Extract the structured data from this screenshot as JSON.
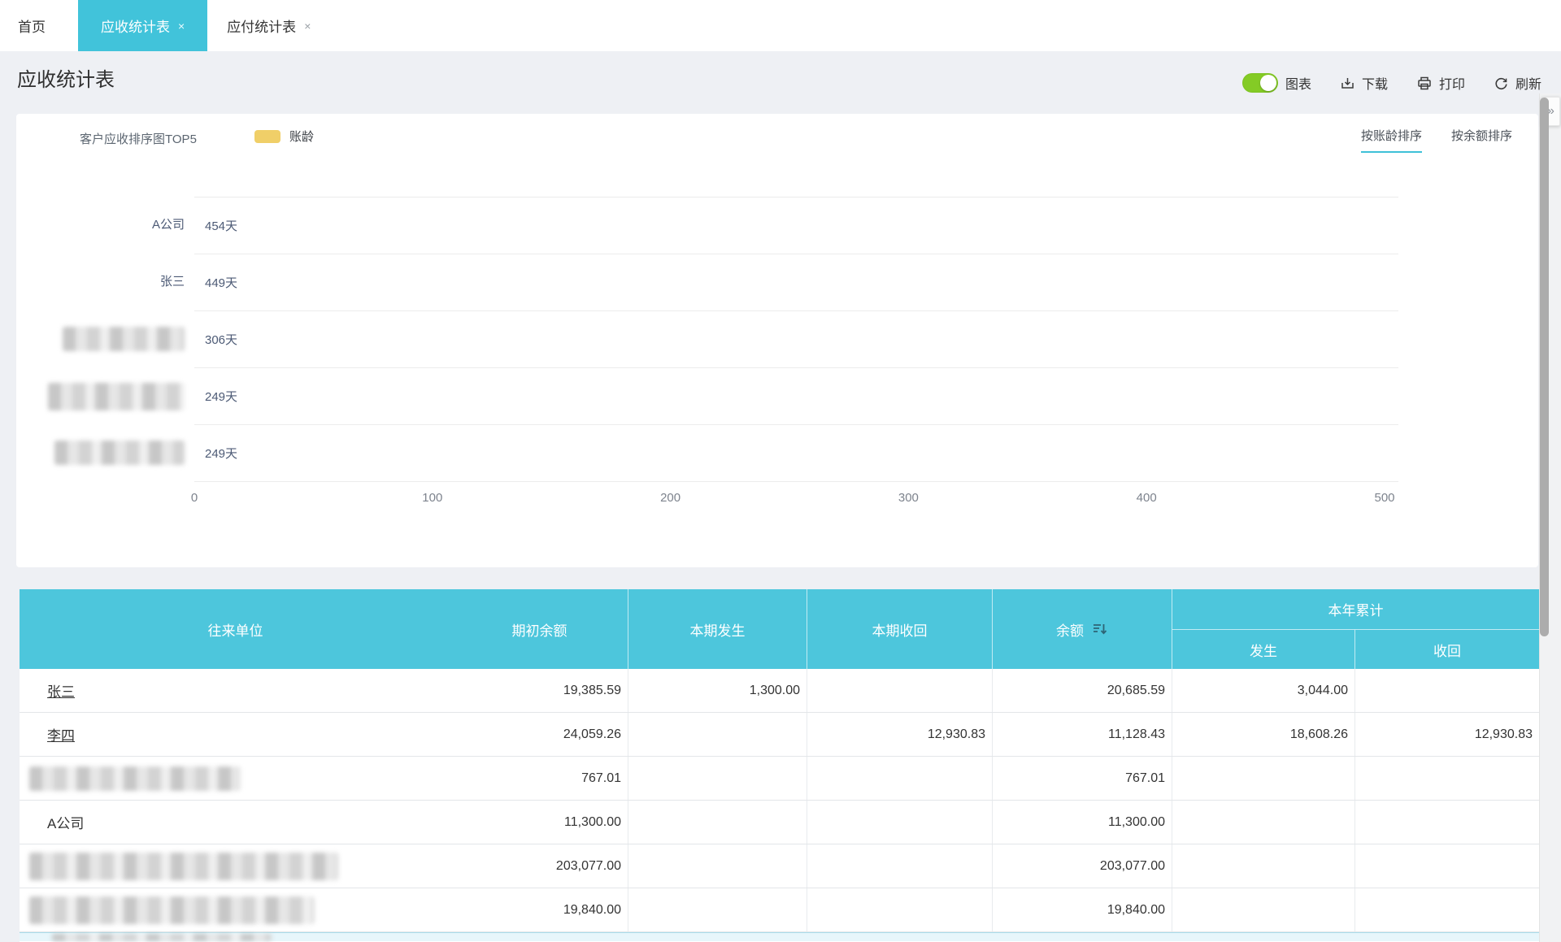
{
  "tab_bar": {
    "tabs": [
      {
        "label": "首页",
        "close": ""
      },
      {
        "label": "应收统计表",
        "close": "×"
      },
      {
        "label": "应付统计表",
        "close": "×"
      }
    ]
  },
  "header": {
    "title": "应收统计表",
    "toolbar": {
      "chart_toggle_label": "图表",
      "toggle_on": true,
      "download_label": "下载",
      "print_label": "打印",
      "refresh_label": "刷新"
    }
  },
  "chart_panel": {
    "title": "客户应收排序图TOP5",
    "legend_label": "账龄",
    "sort_by_aging": "按账龄排序",
    "sort_by_balance": "按余额排序"
  },
  "chart_data": {
    "type": "bar",
    "orientation": "horizontal",
    "title": "客户应收排序图TOP5",
    "legend": [
      "账龄"
    ],
    "legend_position": "top",
    "categories": [
      "A公司",
      "张三",
      "",
      "",
      ""
    ],
    "categories_redacted": [
      false,
      false,
      true,
      true,
      true
    ],
    "values": [
      454,
      449,
      306,
      249,
      249
    ],
    "unit": "天",
    "value_labels": [
      "454天",
      "449天",
      "306天",
      "249天",
      "249天"
    ],
    "xlim": [
      0,
      500
    ],
    "xticks": [
      "0",
      "100",
      "200",
      "300",
      "400",
      "500"
    ],
    "bar_color": "#F0CF68",
    "grid": "category band separator lines only, no vertical gridlines"
  },
  "table": {
    "headers": {
      "col1": "往来单位",
      "col2": "期初余额",
      "col3": "本期发生",
      "col4": "本期收回",
      "col5": "余额",
      "group": "本年累计",
      "sub1": "发生",
      "sub2": "收回"
    },
    "rows": [
      {
        "name": "张三",
        "name_link": true,
        "redacted": false,
        "opening_balance": "19,385.59",
        "current_occurred": "1,300.00",
        "current_received": "",
        "balance": "20,685.59",
        "ytd_occurred": "3,044.00",
        "ytd_received": ""
      },
      {
        "name": "李四",
        "name_link": true,
        "redacted": false,
        "opening_balance": "24,059.26",
        "current_occurred": "",
        "current_received": "12,930.83",
        "balance": "11,128.43",
        "ytd_occurred": "18,608.26",
        "ytd_received": "12,930.83"
      },
      {
        "name": "",
        "name_link": false,
        "redacted": true,
        "opening_balance": "767.01",
        "current_occurred": "",
        "current_received": "",
        "balance": "767.01",
        "ytd_occurred": "",
        "ytd_received": ""
      },
      {
        "name": "A公司",
        "name_link": false,
        "redacted": false,
        "opening_balance": "11,300.00",
        "current_occurred": "",
        "current_received": "",
        "balance": "11,300.00",
        "ytd_occurred": "",
        "ytd_received": ""
      },
      {
        "name": "",
        "name_link": false,
        "redacted": true,
        "opening_balance": "203,077.00",
        "current_occurred": "",
        "current_received": "",
        "balance": "203,077.00",
        "ytd_occurred": "",
        "ytd_received": ""
      },
      {
        "name": "",
        "name_link": false,
        "redacted": true,
        "opening_balance": "19,840.00",
        "current_occurred": "",
        "current_received": "",
        "balance": "19,840.00",
        "ytd_occurred": "",
        "ytd_received": ""
      }
    ]
  },
  "side_rail": {
    "expand_icon": "»"
  },
  "colors": {
    "accent_cyan": "#41C3DA",
    "table_header_cyan": "#4DC6DC",
    "bar_yellow": "#F0CF68",
    "toggle_green": "#84CB25",
    "page_background": "#eef0f4"
  }
}
